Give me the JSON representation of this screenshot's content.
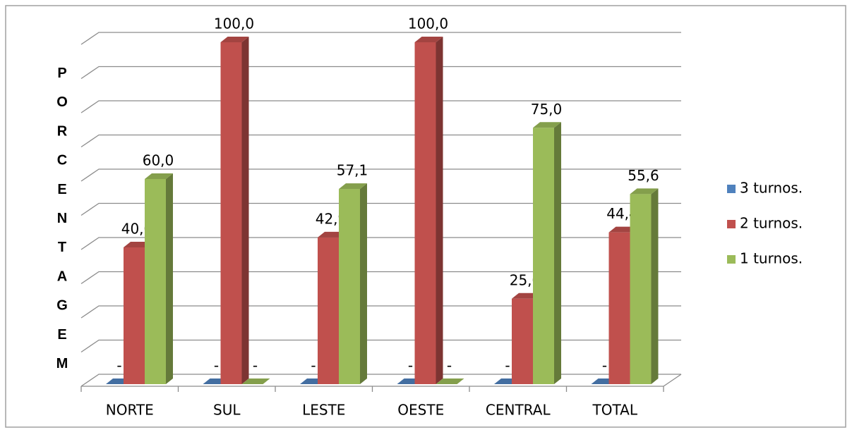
{
  "chart_data": {
    "type": "bar3d",
    "ylabel": "PORCENTAGEM",
    "categories": [
      "NORTE",
      "SUL",
      "LESTE",
      "OESTE",
      "CENTRAL",
      "TOTAL"
    ],
    "series": [
      {
        "name": "3 turnos.",
        "color": "#4f81bd",
        "values": [
          0,
          0,
          0,
          0,
          0,
          0
        ],
        "value_labels": [
          "-",
          "-",
          "-",
          "-",
          "-",
          "-"
        ]
      },
      {
        "name": "2 turnos.",
        "color": "#c0504d",
        "values": [
          40,
          100,
          42.9,
          100,
          25,
          44.4
        ],
        "value_labels": [
          "40,0",
          "100,0",
          "42,9",
          "100,0",
          "25,0",
          "44,4"
        ]
      },
      {
        "name": "1 turnos.",
        "color": "#9bbb59",
        "values": [
          60,
          0,
          57.1,
          0,
          75,
          55.6
        ],
        "value_labels": [
          "60,0",
          "-",
          "57,1",
          "-",
          "75,0",
          "55,6"
        ]
      }
    ],
    "ylim": [
      0,
      100
    ],
    "yticks": [
      0,
      10,
      20,
      30,
      40,
      50,
      60,
      70,
      80,
      90,
      100
    ],
    "grid": true,
    "legend": "right"
  }
}
